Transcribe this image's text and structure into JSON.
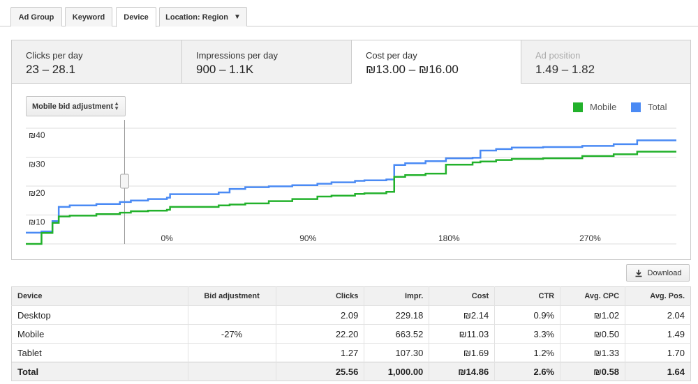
{
  "top_tabs": [
    {
      "label": "Ad Group",
      "active": false
    },
    {
      "label": "Keyword",
      "active": false
    },
    {
      "label": "Device",
      "active": true
    },
    {
      "label": "Location: Region",
      "active": false
    }
  ],
  "metrics": [
    {
      "label": "Clicks per day",
      "value": "23 – 28.1",
      "state": "normal"
    },
    {
      "label": "Impressions per day",
      "value": "900 – 1.1K",
      "state": "normal"
    },
    {
      "label": "Cost per day",
      "value": "₪13.00 – ₪16.00",
      "state": "selected"
    },
    {
      "label": "Ad position",
      "value": "1.49 – 1.82",
      "state": "dimmed"
    }
  ],
  "bid_select": {
    "label": "Mobile bid adjustment"
  },
  "legend": [
    {
      "name": "Mobile",
      "color": "#22b12b"
    },
    {
      "name": "Total",
      "color": "#4a8af4"
    }
  ],
  "chart_data": {
    "type": "line",
    "step": true,
    "ylabel_ticks": [
      "₪10",
      "₪20",
      "₪30",
      "₪40"
    ],
    "y_ticks": [
      10,
      20,
      30,
      40
    ],
    "ylim": [
      0,
      40
    ],
    "x_ticks": [
      {
        "label": "0%",
        "value": 0
      },
      {
        "label": "90%",
        "value": 90
      },
      {
        "label": "180%",
        "value": 180
      },
      {
        "label": "270%",
        "value": 270
      }
    ],
    "xlim": [
      -90,
      325
    ],
    "current_marker_x": -27,
    "grid": true,
    "legend_position": "top-right",
    "series": [
      {
        "name": "Total",
        "color": "#4a8af4",
        "x": [
          -90,
          -80,
          -73,
          -69,
          -62,
          -45,
          -30,
          -23,
          -12,
          0,
          2,
          33,
          40,
          50,
          65,
          80,
          96,
          105,
          120,
          126,
          140,
          145,
          152,
          165,
          178,
          195,
          200,
          210,
          220,
          240,
          265,
          285,
          300,
          325
        ],
        "y": [
          3.9,
          4.3,
          7.9,
          12.8,
          13.3,
          13.8,
          14.5,
          15.0,
          15.5,
          16.0,
          17.2,
          17.8,
          19.0,
          19.6,
          19.9,
          20.3,
          20.8,
          21.3,
          21.8,
          22.0,
          22.3,
          27.3,
          27.9,
          28.6,
          29.6,
          29.8,
          32.3,
          32.8,
          33.3,
          33.5,
          33.9,
          34.5,
          35.8,
          35.8
        ]
      },
      {
        "name": "Mobile",
        "color": "#22b12b",
        "x": [
          -90,
          -80,
          -73,
          -69,
          -62,
          -45,
          -30,
          -23,
          -12,
          0,
          2,
          33,
          40,
          50,
          65,
          80,
          96,
          105,
          120,
          126,
          140,
          145,
          152,
          165,
          178,
          195,
          200,
          210,
          220,
          240,
          265,
          285,
          300,
          325
        ],
        "y": [
          0,
          3.8,
          7.3,
          9.5,
          9.8,
          10.3,
          10.8,
          11.3,
          11.5,
          11.8,
          12.8,
          13.3,
          13.6,
          14.0,
          14.8,
          15.5,
          16.4,
          16.7,
          17.3,
          17.5,
          18.0,
          23.2,
          23.8,
          24.3,
          27.4,
          28.2,
          28.5,
          29.0,
          29.4,
          29.6,
          30.4,
          31.0,
          31.9,
          31.9
        ]
      }
    ]
  },
  "download": {
    "label": "Download"
  },
  "table": {
    "headers": [
      "Device",
      "Bid adjustment",
      "Clicks",
      "Impr.",
      "Cost",
      "CTR",
      "Avg. CPC",
      "Avg. Pos."
    ],
    "rows": [
      [
        "Desktop",
        "",
        "2.09",
        "229.18",
        "₪2.14",
        "0.9%",
        "₪1.02",
        "2.04"
      ],
      [
        "Mobile",
        "-27%",
        "22.20",
        "663.52",
        "₪11.03",
        "3.3%",
        "₪0.50",
        "1.49"
      ],
      [
        "Tablet",
        "",
        "1.27",
        "107.30",
        "₪1.69",
        "1.2%",
        "₪1.33",
        "1.70"
      ]
    ],
    "total": [
      "Total",
      "",
      "25.56",
      "1,000.00",
      "₪14.86",
      "2.6%",
      "₪0.58",
      "1.64"
    ]
  }
}
